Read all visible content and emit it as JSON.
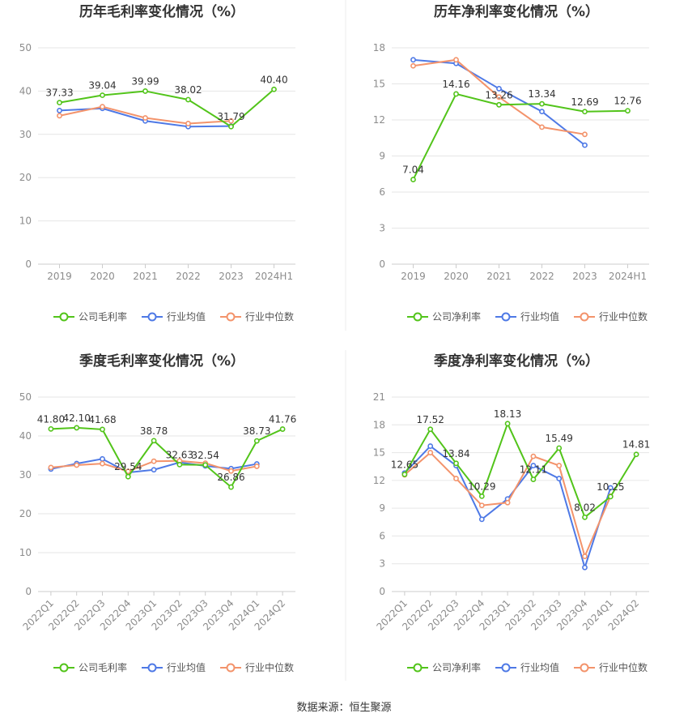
{
  "colors": {
    "company": "#52c41a",
    "industry_avg": "#4e79e6",
    "industry_median": "#f3936b",
    "grid": "#e6e6e6",
    "axis_text": "#8c8c8c"
  },
  "footer": {
    "source": "数据来源：恒生聚源"
  },
  "chart_data": [
    {
      "type": "line",
      "title": "历年毛利率变化情况（%）",
      "categories": [
        "2019",
        "2020",
        "2021",
        "2022",
        "2023",
        "2024H1"
      ],
      "ylim": [
        0,
        50
      ],
      "yticks": [
        0,
        10,
        20,
        30,
        40,
        50
      ],
      "grid": true,
      "legend_position": "bottom",
      "series": [
        {
          "name": "公司毛利率",
          "values": [
            37.33,
            39.04,
            39.99,
            38.02,
            31.79,
            40.4
          ],
          "labels": [
            "37.33",
            "39.04",
            "39.99",
            "38.02",
            "31.79",
            "40.40"
          ]
        },
        {
          "name": "行业均值",
          "values": [
            35.5,
            36.0,
            33.1,
            31.8,
            31.9,
            null
          ]
        },
        {
          "name": "行业中位数",
          "values": [
            34.3,
            36.4,
            33.8,
            32.5,
            33.1,
            null
          ]
        }
      ]
    },
    {
      "type": "line",
      "title": "历年净利率变化情况（%）",
      "categories": [
        "2019",
        "2020",
        "2021",
        "2022",
        "2023",
        "2024H1"
      ],
      "ylim": [
        0,
        18
      ],
      "yticks": [
        0,
        3,
        6,
        9,
        12,
        15,
        18
      ],
      "grid": true,
      "legend_position": "bottom",
      "series": [
        {
          "name": "公司净利率",
          "values": [
            7.04,
            14.16,
            13.26,
            13.34,
            12.69,
            12.76
          ],
          "labels": [
            "7.04",
            "14.16",
            "13.26",
            "13.34",
            "12.69",
            "12.76"
          ]
        },
        {
          "name": "行业均值",
          "values": [
            17.0,
            16.7,
            14.6,
            12.7,
            9.9,
            null
          ]
        },
        {
          "name": "行业中位数",
          "values": [
            16.5,
            17.0,
            13.9,
            11.4,
            10.8,
            null
          ]
        }
      ]
    },
    {
      "type": "line",
      "title": "季度毛利率变化情况（%）",
      "categories": [
        "2022Q1",
        "2022Q2",
        "2022Q3",
        "2022Q4",
        "2023Q1",
        "2023Q2",
        "2023Q3",
        "2023Q4",
        "2024Q1",
        "2024Q2"
      ],
      "ylim": [
        0,
        50
      ],
      "yticks": [
        0,
        10,
        20,
        30,
        40,
        50
      ],
      "grid": true,
      "legend_position": "bottom",
      "series": [
        {
          "name": "公司毛利率",
          "values": [
            41.8,
            42.1,
            41.68,
            29.54,
            38.78,
            32.63,
            32.54,
            26.86,
            38.73,
            41.76
          ],
          "labels": [
            "41.80",
            "42.10",
            "41.68",
            "29.54",
            "38.78",
            "32.63",
            "32.54",
            "26.86",
            "38.73",
            "41.76"
          ]
        },
        {
          "name": "行业均值",
          "values": [
            31.5,
            32.9,
            34.1,
            30.6,
            31.3,
            33.2,
            32.3,
            31.6,
            32.8,
            null
          ]
        },
        {
          "name": "行业中位数",
          "values": [
            31.9,
            32.5,
            32.9,
            30.9,
            33.5,
            33.6,
            33.0,
            31.0,
            32.2,
            null
          ]
        }
      ]
    },
    {
      "type": "line",
      "title": "季度净利率变化情况（%）",
      "categories": [
        "2022Q1",
        "2022Q2",
        "2022Q3",
        "2022Q4",
        "2023Q1",
        "2023Q2",
        "2023Q3",
        "2023Q4",
        "2024Q1",
        "2024Q2"
      ],
      "ylim": [
        0,
        21
      ],
      "yticks": [
        0,
        3,
        6,
        9,
        12,
        15,
        18,
        21
      ],
      "grid": true,
      "legend_position": "bottom",
      "series": [
        {
          "name": "公司净利率",
          "values": [
            12.65,
            17.52,
            13.84,
            10.29,
            18.13,
            12.11,
            15.49,
            8.02,
            10.25,
            14.81
          ],
          "labels": [
            "12.65",
            "17.52",
            "13.84",
            "10.29",
            "18.13",
            "12.11",
            "15.49",
            "8.02",
            "10.25",
            "14.81"
          ]
        },
        {
          "name": "行业均值",
          "values": [
            12.8,
            15.7,
            13.6,
            7.8,
            10.0,
            13.6,
            12.2,
            2.6,
            11.2,
            null
          ]
        },
        {
          "name": "行业中位数",
          "values": [
            12.6,
            15.0,
            12.2,
            9.3,
            9.6,
            14.6,
            13.6,
            3.8,
            10.3,
            null
          ]
        }
      ]
    }
  ]
}
